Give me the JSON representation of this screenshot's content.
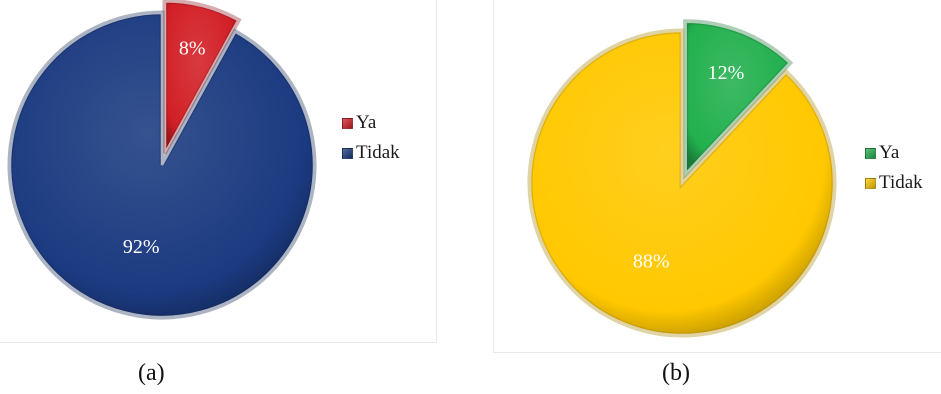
{
  "chart_data": [
    {
      "type": "pie",
      "caption": "(a)",
      "slices": [
        {
          "label": "Ya",
          "value": 8,
          "display": "8%",
          "color": "#d21f26",
          "text_color": "#ffffff"
        },
        {
          "label": "Tidak",
          "value": 92,
          "display": "92%",
          "color": "#1b3a80",
          "text_color": "#ffffff"
        }
      ],
      "legend": [
        "Ya",
        "Tidak"
      ],
      "legend_position": "right"
    },
    {
      "type": "pie",
      "caption": "(b)",
      "slices": [
        {
          "label": "Ya",
          "value": 12,
          "display": "12%",
          "color": "#22b04e",
          "text_color": "#1a1a1a"
        },
        {
          "label": "Tidak",
          "value": 88,
          "display": "88%",
          "color": "#ffc800",
          "text_color": "#1a1a1a"
        }
      ],
      "legend": [
        "Ya",
        "Tidak"
      ],
      "legend_position": "right"
    }
  ]
}
